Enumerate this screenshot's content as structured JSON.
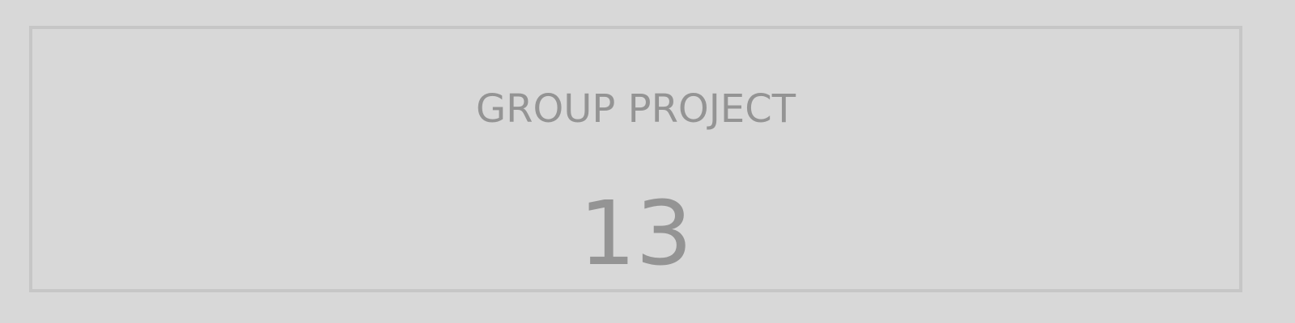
{
  "card": {
    "title": "GROUP PROJECT",
    "value": "13"
  },
  "colors": {
    "background": "#d8d8d8",
    "border": "#c6c6c6",
    "text": "#949494"
  }
}
